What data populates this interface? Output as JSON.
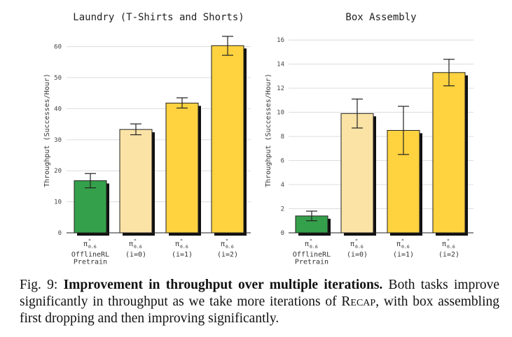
{
  "chart_data": [
    {
      "type": "bar",
      "title": "Laundry (T-Shirts and Shorts)",
      "ylabel": "Throughput (Successes/Hour)",
      "ylim": [
        0,
        66
      ],
      "yticks": [
        0,
        10,
        20,
        30,
        40,
        50,
        60
      ],
      "grid": "horizontal",
      "categories": [
        {
          "symbol": "π",
          "sup": "*",
          "sub": "0.6",
          "lines": [
            "OfflineRL",
            "Pretrain"
          ]
        },
        {
          "symbol": "π",
          "sup": "*",
          "sub": "0.6",
          "lines": [
            "(i=0)"
          ]
        },
        {
          "symbol": "π",
          "sup": "*",
          "sub": "0.6",
          "lines": [
            "(i=1)"
          ]
        },
        {
          "symbol": "π",
          "sup": "*",
          "sub": "0.6",
          "lines": [
            "(i=2)"
          ]
        }
      ],
      "values": [
        16.8,
        33.3,
        41.8,
        60.3
      ],
      "error_low": [
        14.5,
        31.6,
        40.2,
        57.2
      ],
      "error_high": [
        19.1,
        35.1,
        43.5,
        63.3
      ],
      "colors": [
        "#35a04b",
        "#fbe3a6",
        "#ffd23f",
        "#ffd23f"
      ]
    },
    {
      "type": "bar",
      "title": "Box Assembly",
      "ylabel": "Throughput (Successes/Hour)",
      "ylim": [
        0,
        17
      ],
      "yticks": [
        0,
        2,
        4,
        6,
        8,
        10,
        12,
        14,
        16
      ],
      "grid": "horizontal",
      "categories": [
        {
          "symbol": "π",
          "sup": "*",
          "sub": "0.6",
          "lines": [
            "OfflineRL",
            "Pretrain"
          ]
        },
        {
          "symbol": "π",
          "sup": "*",
          "sub": "0.6",
          "lines": [
            "(i=0)"
          ]
        },
        {
          "symbol": "π",
          "sup": "*",
          "sub": "0.6",
          "lines": [
            "(i=1)"
          ]
        },
        {
          "symbol": "π",
          "sup": "*",
          "sub": "0.6",
          "lines": [
            "(i=2)"
          ]
        }
      ],
      "values": [
        1.4,
        9.9,
        8.5,
        13.3
      ],
      "error_low": [
        1.0,
        8.7,
        6.5,
        12.2
      ],
      "error_high": [
        1.8,
        11.1,
        10.5,
        14.4
      ],
      "colors": [
        "#35a04b",
        "#fbe3a6",
        "#ffd23f",
        "#ffd23f"
      ]
    }
  ],
  "caption": {
    "label": "Fig. 9: ",
    "bold": "Improvement in throughput over multiple iterations.",
    "text_before_sc": " Both tasks improve significantly in throughput as we take more iterations of ",
    "small_caps": "Recap",
    "text_after_sc": ", with box assembling first dropping and then improving significantly."
  }
}
